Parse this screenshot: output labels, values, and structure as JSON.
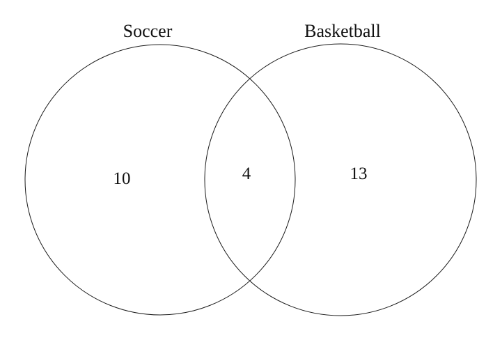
{
  "diagram": {
    "type": "venn",
    "line_color": "#1a1a1a",
    "sets": [
      {
        "label": "Soccer"
      },
      {
        "label": "Basketball"
      }
    ],
    "regions": {
      "soccer_only": "10",
      "both": "4",
      "basketball_only": "13"
    }
  }
}
